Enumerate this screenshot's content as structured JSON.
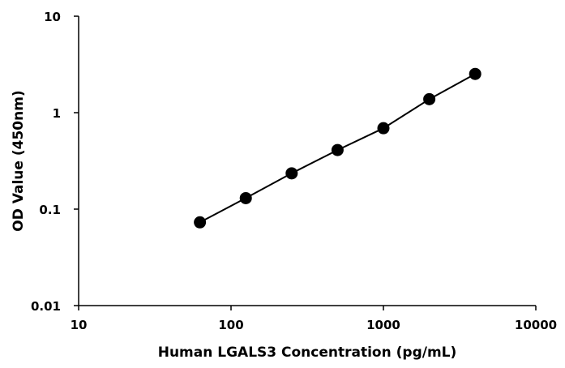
{
  "chart_data": {
    "type": "scatter",
    "title": "",
    "xlabel": "Human LGALS3 Concentration (pg/mL)",
    "ylabel": "OD Value (450nm)",
    "xscale": "log",
    "yscale": "log",
    "xlim": [
      10,
      10000
    ],
    "ylim": [
      0.01,
      10
    ],
    "grid": false,
    "legend": "none",
    "x_ticks": [
      10,
      100,
      1000,
      10000
    ],
    "x_tick_labels": [
      "10",
      "100",
      "1000",
      "10000"
    ],
    "y_ticks": [
      0.01,
      0.1,
      1,
      10
    ],
    "y_tick_labels": [
      "0.01",
      "0.1",
      "1",
      "10"
    ],
    "series": [
      {
        "x": [
          62.5,
          125,
          250,
          500,
          1000,
          2000,
          4000
        ],
        "y": [
          0.073,
          0.13,
          0.235,
          0.41,
          0.69,
          1.38,
          2.52
        ],
        "connect": true,
        "marker": "circle",
        "color": "#000000"
      }
    ]
  }
}
